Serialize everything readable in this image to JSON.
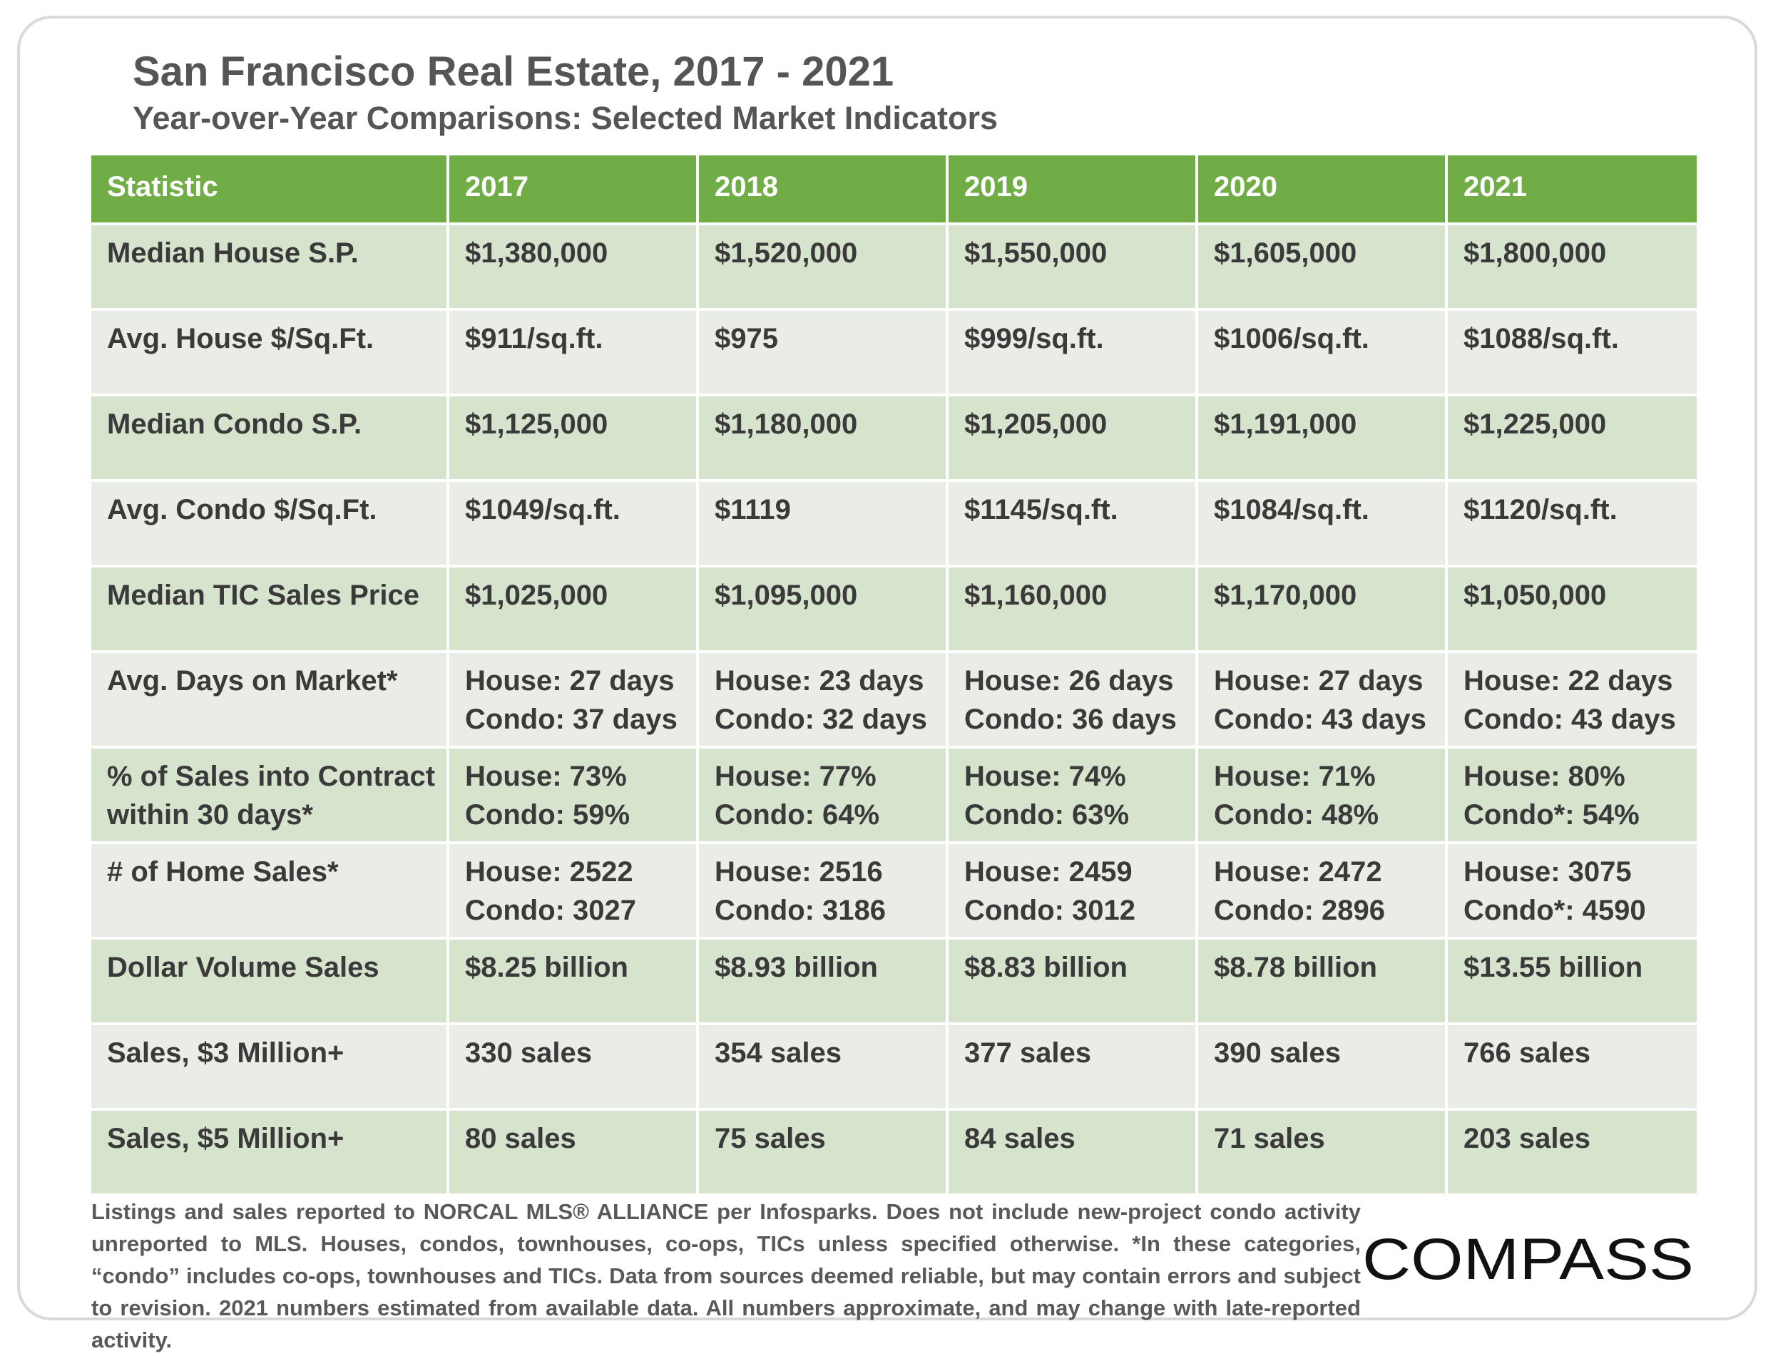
{
  "page": {
    "title": "San Francisco Real Estate, 2017 - 2021",
    "subtitle": "Year-over-Year Comparisons: Selected Market Indicators",
    "footnote": "Listings and sales reported to NORCAL MLS® ALLIANCE per Infosparks. Does not include new-project condo activity unreported to MLS. Houses, condos, townhouses, co-ops, TICs unless specified otherwise. *In these categories, “condo” includes co-ops, townhouses and TICs. Data from sources deemed reliable, but may contain errors and subject to revision. 2021 numbers estimated from available data. All numbers approximate, and may change with late-reported activity.",
    "logo_text": "COMPASS"
  },
  "colors": {
    "header_bg": "#70ad47",
    "row_dark": "#d6e3cd",
    "row_light": "#e9ede6",
    "text": "#3a3a3a",
    "title_text": "#555555",
    "border": "#d9d9d9"
  },
  "chart_data": {
    "type": "table",
    "title": "San Francisco Real Estate, 2017 - 2021",
    "subtitle": "Year-over-Year Comparisons: Selected Market Indicators",
    "columns": [
      "Statistic",
      "2017",
      "2018",
      "2019",
      "2020",
      "2021"
    ],
    "rows": [
      {
        "statistic": [
          "Median House S.P."
        ],
        "cells": [
          [
            "$1,380,000"
          ],
          [
            "$1,520,000"
          ],
          [
            "$1,550,000"
          ],
          [
            "$1,605,000"
          ],
          [
            "$1,800,000"
          ]
        ]
      },
      {
        "statistic": [
          "Avg. House $/Sq.Ft."
        ],
        "cells": [
          [
            "$911/sq.ft."
          ],
          [
            "$975"
          ],
          [
            "$999/sq.ft."
          ],
          [
            "$1006/sq.ft."
          ],
          [
            "$1088/sq.ft."
          ]
        ]
      },
      {
        "statistic": [
          "Median Condo S.P."
        ],
        "cells": [
          [
            "$1,125,000"
          ],
          [
            "$1,180,000"
          ],
          [
            "$1,205,000"
          ],
          [
            "$1,191,000"
          ],
          [
            "$1,225,000"
          ]
        ]
      },
      {
        "statistic": [
          "Avg. Condo $/Sq.Ft."
        ],
        "cells": [
          [
            "$1049/sq.ft."
          ],
          [
            "$1119"
          ],
          [
            "$1145/sq.ft."
          ],
          [
            "$1084/sq.ft."
          ],
          [
            "$1120/sq.ft."
          ]
        ]
      },
      {
        "statistic": [
          "Median TIC Sales Price"
        ],
        "cells": [
          [
            "$1,025,000"
          ],
          [
            "$1,095,000"
          ],
          [
            "$1,160,000"
          ],
          [
            "$1,170,000"
          ],
          [
            "$1,050,000"
          ]
        ]
      },
      {
        "statistic": [
          "Avg. Days on Market*"
        ],
        "cells": [
          [
            "House: 27 days",
            "Condo: 37 days"
          ],
          [
            "House: 23 days",
            "Condo: 32 days"
          ],
          [
            "House: 26 days",
            "Condo: 36 days"
          ],
          [
            "House: 27 days",
            "Condo: 43 days"
          ],
          [
            "House:  22 days",
            "Condo:  43 days"
          ]
        ]
      },
      {
        "statistic": [
          "% of Sales into Contract",
          "within 30 days*"
        ],
        "cells": [
          [
            "House: 73%",
            "Condo: 59%"
          ],
          [
            "House: 77%",
            "Condo: 64%"
          ],
          [
            "House: 74%",
            "Condo: 63%"
          ],
          [
            "House: 71%",
            "Condo: 48%"
          ],
          [
            "House: 80%",
            "Condo*: 54%"
          ]
        ]
      },
      {
        "statistic": [
          "# of Home Sales*"
        ],
        "cells": [
          [
            "House: 2522",
            "Condo: 3027"
          ],
          [
            "House: 2516",
            "Condo: 3186"
          ],
          [
            "House: 2459",
            "Condo: 3012"
          ],
          [
            "House: 2472",
            "Condo: 2896"
          ],
          [
            "House:  3075",
            "Condo*:  4590"
          ]
        ]
      },
      {
        "statistic": [
          "Dollar Volume Sales"
        ],
        "cells": [
          [
            "$8.25 billion"
          ],
          [
            "$8.93 billion"
          ],
          [
            "$8.83 billion"
          ],
          [
            "$8.78 billion"
          ],
          [
            "$13.55 billion"
          ]
        ]
      },
      {
        "statistic": [
          "Sales, $3 Million+"
        ],
        "cells": [
          [
            "330 sales"
          ],
          [
            "354 sales"
          ],
          [
            "377 sales"
          ],
          [
            "390 sales"
          ],
          [
            "766 sales"
          ]
        ]
      },
      {
        "statistic": [
          "Sales, $5 Million+"
        ],
        "cells": [
          [
            "80 sales"
          ],
          [
            "75 sales"
          ],
          [
            "84 sales"
          ],
          [
            "71 sales"
          ],
          [
            "203 sales"
          ]
        ]
      }
    ]
  }
}
